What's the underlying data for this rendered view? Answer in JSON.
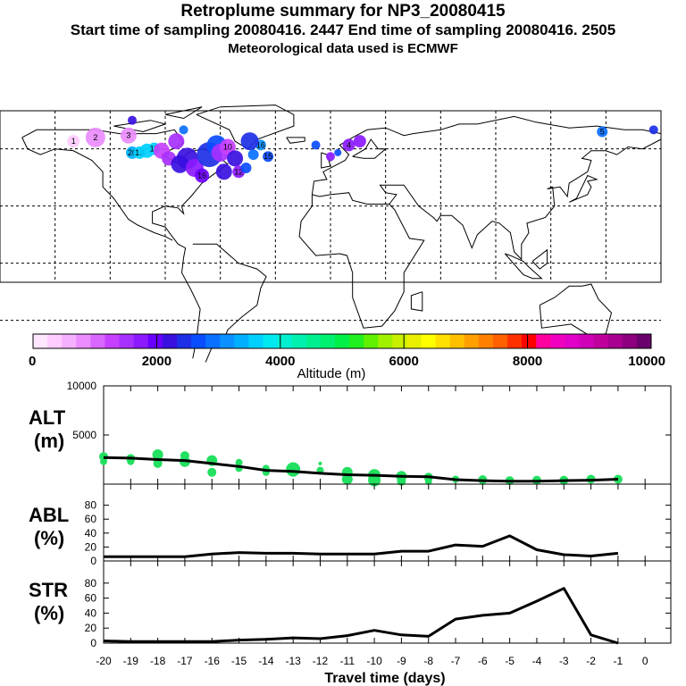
{
  "header": {
    "title": "Retroplume summary for NP3_20080415",
    "line2": "Start time of sampling 20080416.  2447     End time of sampling 20080416.  2505",
    "line3": "Meteorological data used is ECMWF"
  },
  "colors": {
    "alt_points": "#22e060",
    "line": "#000000",
    "colorbar": [
      "#ffe6ff",
      "#ffccff",
      "#f5b0ff",
      "#eb8cff",
      "#d966ff",
      "#c840ff",
      "#a830ff",
      "#8c1aff",
      "#6a00ff",
      "#3a10e0",
      "#1e30e6",
      "#0a4dff",
      "#0a70ff",
      "#0a90ff",
      "#00b0ff",
      "#00d0ff",
      "#00e8f0",
      "#00f0d0",
      "#00f0b0",
      "#00f090",
      "#00f070",
      "#00f048",
      "#20f020",
      "#60f000",
      "#a0f000",
      "#c8f000",
      "#e8f000",
      "#ffff00",
      "#ffe000",
      "#ffc000",
      "#ffa000",
      "#ff8000",
      "#ff6000",
      "#ff3000",
      "#ff0000",
      "#ff00a0",
      "#f000c0",
      "#e000c8",
      "#d000b8",
      "#c0009c",
      "#a80090",
      "#8c0080",
      "#6a006c"
    ]
  },
  "map": {
    "points": [
      {
        "lon": -140,
        "lat": 64,
        "alt": 300,
        "label": "1",
        "size": 7
      },
      {
        "lon": -128,
        "lat": 66,
        "alt": 800,
        "label": "2",
        "size": 11
      },
      {
        "lon": -110,
        "lat": 67,
        "alt": 700,
        "label": "3",
        "size": 9
      },
      {
        "lon": -108,
        "lat": 75,
        "alt": 2200,
        "label": "",
        "size": 5
      },
      {
        "lon": -108,
        "lat": 58,
        "alt": 3300,
        "label": "20",
        "size": 7
      },
      {
        "lon": -104,
        "lat": 58,
        "alt": 3500,
        "label": "19",
        "size": 7
      },
      {
        "lon": -100,
        "lat": 59,
        "alt": 3500,
        "label": "",
        "size": 8
      },
      {
        "lon": -96,
        "lat": 60,
        "alt": 3600,
        "label": "17",
        "size": 7
      },
      {
        "lon": -92,
        "lat": 59,
        "alt": 1200,
        "label": "",
        "size": 9
      },
      {
        "lon": -88,
        "lat": 55,
        "alt": 1400,
        "label": "",
        "size": 8
      },
      {
        "lon": -84,
        "lat": 64,
        "alt": 1500,
        "label": "",
        "size": 9
      },
      {
        "lon": -80,
        "lat": 70,
        "alt": 2800,
        "label": "",
        "size": 5
      },
      {
        "lon": -82,
        "lat": 52,
        "alt": 2300,
        "label": "",
        "size": 10
      },
      {
        "lon": -78,
        "lat": 55,
        "alt": 2300,
        "label": "",
        "size": 12
      },
      {
        "lon": -74,
        "lat": 50,
        "alt": 1700,
        "label": "",
        "size": 10
      },
      {
        "lon": -70,
        "lat": 46,
        "alt": 1900,
        "label": "16",
        "size": 8
      },
      {
        "lon": -66,
        "lat": 57,
        "alt": 2400,
        "label": "",
        "size": 14
      },
      {
        "lon": -62,
        "lat": 62,
        "alt": 2600,
        "label": "",
        "size": 11
      },
      {
        "lon": -60,
        "lat": 58,
        "alt": 1500,
        "label": "",
        "size": 10
      },
      {
        "lon": -56,
        "lat": 61,
        "alt": 1200,
        "label": "10",
        "size": 9
      },
      {
        "lon": -58,
        "lat": 48,
        "alt": 2300,
        "label": "",
        "size": 9
      },
      {
        "lon": -52,
        "lat": 55,
        "alt": 2200,
        "label": "",
        "size": 9
      },
      {
        "lon": -50,
        "lat": 48,
        "alt": 1800,
        "label": "12",
        "size": 7
      },
      {
        "lon": -46,
        "lat": 50,
        "alt": 2700,
        "label": "",
        "size": 6
      },
      {
        "lon": -42,
        "lat": 57,
        "alt": 2900,
        "label": "",
        "size": 6
      },
      {
        "lon": -38,
        "lat": 62,
        "alt": 3100,
        "label": "16",
        "size": 6
      },
      {
        "lon": -44,
        "lat": 64,
        "alt": 2500,
        "label": "",
        "size": 10
      },
      {
        "lon": -34,
        "lat": 56,
        "alt": 2700,
        "label": "15",
        "size": 6
      },
      {
        "lon": -8,
        "lat": 62,
        "alt": 2600,
        "label": "",
        "size": 5
      },
      {
        "lon": 0,
        "lat": 56,
        "alt": 1800,
        "label": "",
        "size": 5
      },
      {
        "lon": 4,
        "lat": 58,
        "alt": 2700,
        "label": "",
        "size": 4
      },
      {
        "lon": 10,
        "lat": 62,
        "alt": 1800,
        "label": "4",
        "size": 7
      },
      {
        "lon": 16,
        "lat": 64,
        "alt": 1800,
        "label": "",
        "size": 7
      },
      {
        "lon": 148,
        "lat": 69,
        "alt": 2800,
        "label": "5",
        "size": 6
      },
      {
        "lon": 176,
        "lat": 70,
        "alt": 2400,
        "label": "",
        "size": 5
      }
    ]
  },
  "colorbar": {
    "tick_labels": [
      "0",
      "2000",
      "4000",
      "6000",
      "8000",
      "10000"
    ],
    "label": "Altitude (m)"
  },
  "panels": {
    "alt": {
      "name": "ALT",
      "unit": "(m)"
    },
    "abl": {
      "name": "ABL",
      "unit": "(%)"
    },
    "str": {
      "name": "STR",
      "unit": "(%)"
    },
    "xlabel": "Travel time (days)"
  },
  "chart_data": [
    {
      "type": "line",
      "title": "ALT (m)",
      "ylabel": "ALT (m)",
      "ylim": [
        0,
        10000
      ],
      "yticks": [
        "10000",
        "5000"
      ],
      "x": [
        -20,
        -19,
        -18,
        -17,
        -16,
        -15,
        -14,
        -13,
        -12,
        -11,
        -10,
        -9,
        -8,
        -7,
        -6,
        -5,
        -4,
        -3,
        -2,
        -1
      ],
      "values": [
        2700,
        2650,
        2500,
        2400,
        2100,
        1800,
        1400,
        1300,
        1100,
        950,
        900,
        800,
        750,
        450,
        350,
        300,
        300,
        350,
        400,
        500
      ],
      "scatter": [
        {
          "x": -20,
          "y": 2800,
          "s": 5
        },
        {
          "x": -20,
          "y": 2300,
          "s": 4
        },
        {
          "x": -19,
          "y": 2600,
          "s": 5
        },
        {
          "x": -19,
          "y": 2300,
          "s": 4
        },
        {
          "x": -18,
          "y": 3000,
          "s": 6
        },
        {
          "x": -18,
          "y": 2500,
          "s": 5
        },
        {
          "x": -18,
          "y": 2100,
          "s": 5
        },
        {
          "x": -17,
          "y": 2900,
          "s": 5
        },
        {
          "x": -17,
          "y": 2300,
          "s": 6
        },
        {
          "x": -16,
          "y": 2400,
          "s": 6
        },
        {
          "x": -16,
          "y": 1200,
          "s": 5
        },
        {
          "x": -15,
          "y": 2200,
          "s": 4
        },
        {
          "x": -15,
          "y": 1600,
          "s": 4
        },
        {
          "x": -14,
          "y": 1600,
          "s": 4
        },
        {
          "x": -14,
          "y": 1200,
          "s": 4
        },
        {
          "x": -13,
          "y": 1500,
          "s": 8
        },
        {
          "x": -13,
          "y": 1300,
          "s": 6
        },
        {
          "x": -12,
          "y": 2100,
          "s": 2
        },
        {
          "x": -12,
          "y": 1400,
          "s": 4
        },
        {
          "x": -11,
          "y": 1200,
          "s": 6
        },
        {
          "x": -11,
          "y": 500,
          "s": 6
        },
        {
          "x": -10,
          "y": 900,
          "s": 7
        },
        {
          "x": -10,
          "y": 400,
          "s": 7
        },
        {
          "x": -9,
          "y": 800,
          "s": 6
        },
        {
          "x": -9,
          "y": 300,
          "s": 5
        },
        {
          "x": -8,
          "y": 700,
          "s": 5
        },
        {
          "x": -8,
          "y": 300,
          "s": 4
        },
        {
          "x": -7,
          "y": 500,
          "s": 4
        },
        {
          "x": -6,
          "y": 450,
          "s": 5
        },
        {
          "x": -5,
          "y": 350,
          "s": 5
        },
        {
          "x": -4,
          "y": 400,
          "s": 5
        },
        {
          "x": -3,
          "y": 400,
          "s": 5
        },
        {
          "x": -2,
          "y": 500,
          "s": 5
        },
        {
          "x": -1,
          "y": 500,
          "s": 5
        }
      ]
    },
    {
      "type": "line",
      "title": "ABL (%)",
      "ylabel": "ABL (%)",
      "ylim": [
        0,
        100
      ],
      "yticks": [
        "80",
        "60",
        "40",
        "20",
        "0"
      ],
      "x": [
        -20,
        -19,
        -18,
        -17,
        -16,
        -15,
        -14,
        -13,
        -12,
        -11,
        -10,
        -9,
        -8,
        -7,
        -6,
        -5,
        -4,
        -3,
        -2,
        -1
      ],
      "values": [
        6,
        6,
        6,
        6,
        10,
        12,
        11,
        11,
        10,
        10,
        10,
        14,
        14,
        23,
        21,
        36,
        16,
        9,
        7,
        11
      ]
    },
    {
      "type": "line",
      "title": "STR (%)",
      "ylabel": "STR (%)",
      "ylim": [
        0,
        100
      ],
      "yticks": [
        "80",
        "60",
        "40",
        "20",
        "0"
      ],
      "x": [
        -20,
        -19,
        -18,
        -17,
        -16,
        -15,
        -14,
        -13,
        -12,
        -11,
        -10,
        -9,
        -8,
        -7,
        -6,
        -5,
        -4,
        -3,
        -2,
        -1
      ],
      "values": [
        3,
        2,
        2,
        2,
        2,
        4,
        5,
        7,
        6,
        10,
        17,
        11,
        9,
        32,
        37,
        40,
        56,
        73,
        11,
        0
      ],
      "xlabel": "Travel time (days)",
      "xticks": [
        "-20",
        "-19",
        "-18",
        "-17",
        "-16",
        "-15",
        "-14",
        "-13",
        "-12",
        "-11",
        "-10",
        "-9",
        "-8",
        "-7",
        "-6",
        "-5",
        "-4",
        "-3",
        "-2",
        "-1",
        "0"
      ]
    }
  ]
}
